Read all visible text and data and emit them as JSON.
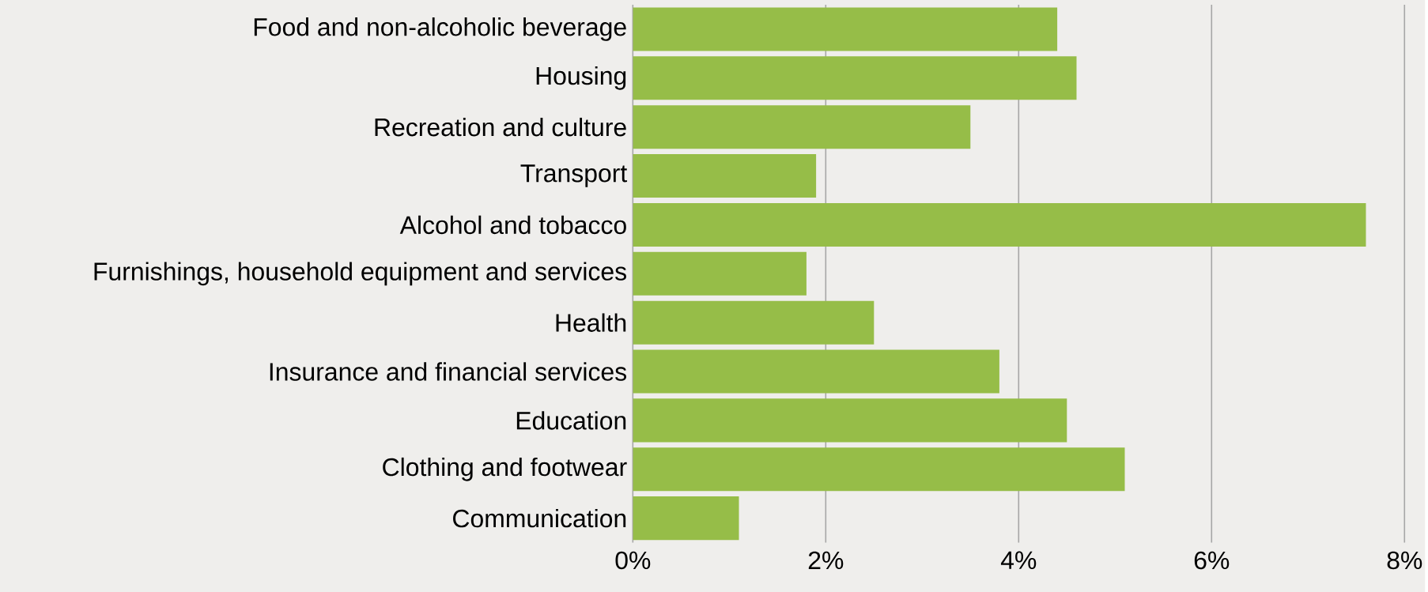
{
  "chart_data": {
    "type": "bar",
    "orientation": "horizontal",
    "categories": [
      "Food and non-alcoholic beverage",
      "Housing",
      "Recreation and culture",
      "Transport",
      "Alcohol and tobacco",
      "Furnishings, household equipment and services",
      "Health",
      "Insurance and financial services",
      "Education",
      "Clothing and footwear",
      "Communication"
    ],
    "values": [
      4.4,
      4.6,
      3.5,
      1.9,
      7.6,
      1.8,
      2.5,
      3.8,
      4.5,
      5.1,
      1.1
    ],
    "color": "#96bd48",
    "xlim": [
      0,
      8
    ],
    "xticks": [
      {
        "value": 0,
        "label": "0%"
      },
      {
        "value": 2,
        "label": "2%"
      },
      {
        "value": 4,
        "label": "4%"
      },
      {
        "value": 6,
        "label": "6%"
      },
      {
        "value": 8,
        "label": "8%"
      }
    ],
    "grid": "x"
  }
}
